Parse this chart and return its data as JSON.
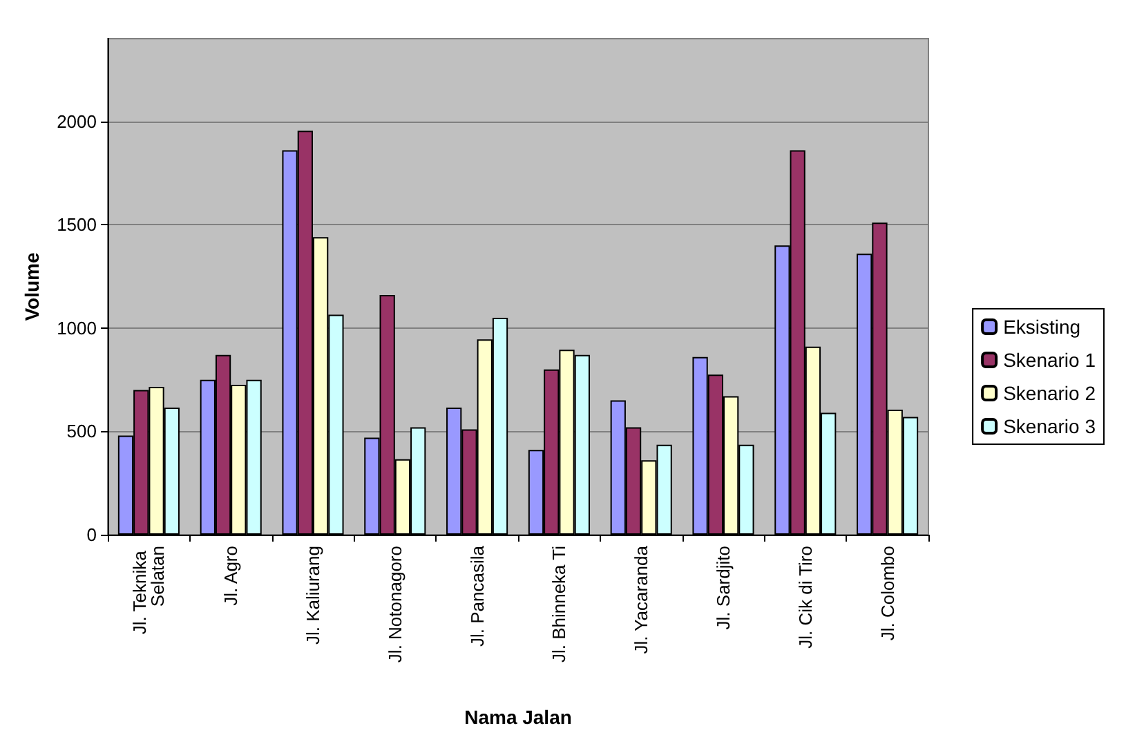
{
  "chart_data": {
    "type": "bar",
    "xlabel": "Nama Jalan",
    "ylabel": "Volume",
    "categories": [
      "Jl. Teknika Selatan",
      "Jl. Agro",
      "Jl. Kaliurang",
      "Jl. Notonagoro",
      "Jl. Pancasila",
      "Jl. Bhinneka Ti",
      "Jl. Yacaranda",
      "Jl. Sardjito",
      "Jl. Cik di Tiro",
      "Jl. Colombo"
    ],
    "series": [
      {
        "name": "Eksisting",
        "color": "#9999ff",
        "values": [
          480,
          750,
          1860,
          470,
          615,
          410,
          650,
          860,
          1400,
          1360
        ]
      },
      {
        "name": "Skenario 1",
        "color": "#993366",
        "values": [
          700,
          870,
          1955,
          1160,
          510,
          800,
          520,
          775,
          1860,
          1510
        ]
      },
      {
        "name": "Skenario 2",
        "color": "#ffffcc",
        "values": [
          715,
          725,
          1440,
          365,
          945,
          895,
          360,
          670,
          910,
          605
        ]
      },
      {
        "name": "Skenario 3",
        "color": "#ccffff",
        "values": [
          615,
          750,
          1065,
          520,
          1050,
          870,
          435,
          435,
          590,
          570
        ]
      }
    ],
    "ylim": [
      0,
      2400
    ],
    "yticks": [
      0,
      500,
      1000,
      1500,
      2000
    ],
    "grid": "y",
    "legend": "right"
  }
}
